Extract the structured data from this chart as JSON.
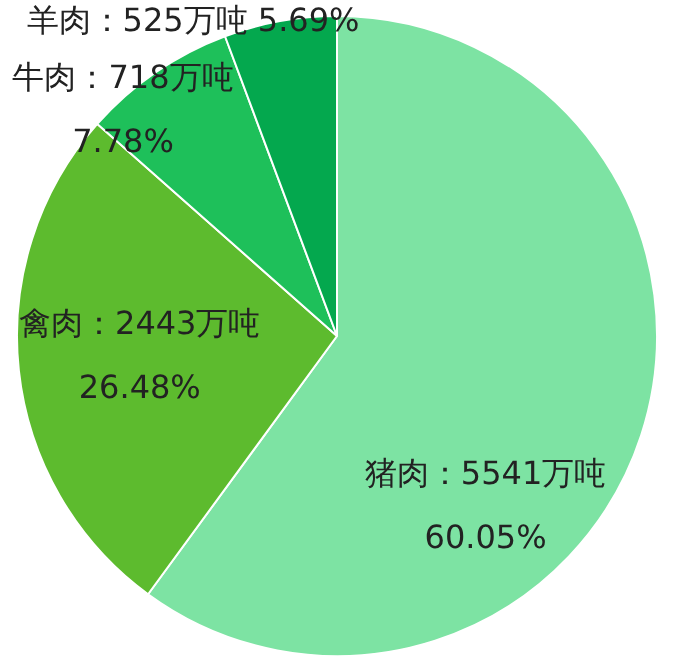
{
  "chart_data": {
    "type": "pie",
    "categories": [
      "猪肉",
      "禽肉",
      "牛肉",
      "羊肉"
    ],
    "values": [
      5541,
      2443,
      718,
      525
    ],
    "colors": [
      "#7de3a3",
      "#5dbb2e",
      "#1ec05a",
      "#04a84e"
    ],
    "value_labels": [
      "5541万吨 60.05%",
      "2443万吨 26.48%",
      "718万吨 7.78%",
      "525万吨 5.69%"
    ],
    "legend": false
  }
}
